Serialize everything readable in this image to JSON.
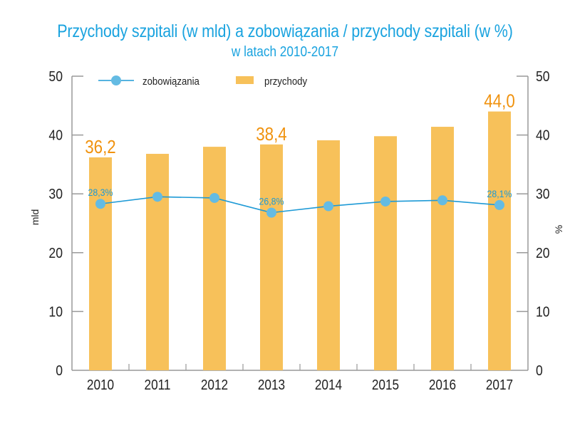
{
  "chart_data": {
    "type": "bar+line",
    "title": "Przychody szpitali (w mld) a zobowiązania / przychody szpitali (w %)",
    "subtitle": "w latach 2010-2017",
    "categories": [
      "2010",
      "2011",
      "2012",
      "2013",
      "2014",
      "2015",
      "2016",
      "2017"
    ],
    "series": [
      {
        "name": "przychody",
        "type": "bar",
        "axis": "left",
        "color": "#F7C15A",
        "values": [
          36.2,
          36.8,
          38.0,
          38.4,
          39.1,
          39.8,
          41.4,
          44.0
        ],
        "data_labels": {
          "0": "36,2",
          "3": "38,4",
          "7": "44,0"
        },
        "label_color": "#F0920E"
      },
      {
        "name": "zobowiązania",
        "type": "line",
        "axis": "right",
        "line_color": "#1E9AD6",
        "marker_color": "#64BBE3",
        "values": [
          28.3,
          29.5,
          29.3,
          26.8,
          27.9,
          28.7,
          28.9,
          28.1
        ],
        "data_labels": {
          "0": "28,3%",
          "3": "26,8%",
          "7": "28,1%"
        },
        "label_color": "#1E9AD6"
      }
    ],
    "ylabel": "mld",
    "ylabel_right": "%",
    "ylim": [
      0,
      50
    ],
    "ylim_right": [
      0,
      50
    ],
    "yticks": [
      "0",
      "10",
      "20",
      "30",
      "40",
      "50"
    ],
    "yticks_right": [
      "0",
      "10",
      "20",
      "30",
      "40",
      "50"
    ],
    "legend": [
      "zobowiązania",
      "przychody"
    ],
    "legend_position": "top-left",
    "grid": false
  }
}
